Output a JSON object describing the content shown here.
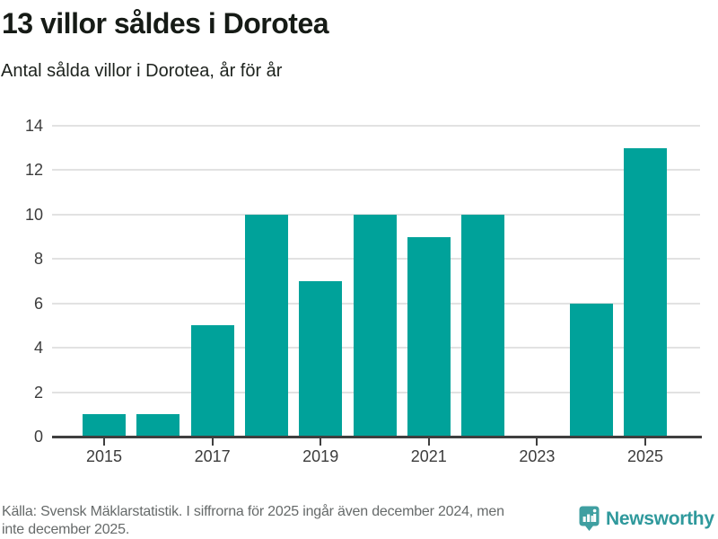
{
  "header": {
    "title": "13 villor såldes i Dorotea",
    "subtitle": "Antal sålda villor i Dorotea, år för år"
  },
  "chart_data": {
    "type": "bar",
    "categories": [
      "2015",
      "2016",
      "2017",
      "2018",
      "2019",
      "2020",
      "2021",
      "2022",
      "2023",
      "2024",
      "2025"
    ],
    "values": [
      1,
      1,
      5,
      10,
      7,
      10,
      9,
      10,
      0,
      6,
      13
    ],
    "title": "13 villor såldes i Dorotea",
    "subtitle": "Antal sålda villor i Dorotea, år för år",
    "xlabel": "",
    "ylabel": "",
    "ylim": [
      0,
      14
    ],
    "yticks": [
      0,
      2,
      4,
      6,
      8,
      10,
      12,
      14
    ],
    "xtick_years": [
      "2015",
      "2017",
      "2019",
      "2021",
      "2023",
      "2025"
    ],
    "grid": "horizontal",
    "legend": "none",
    "bar_color": "#00a29a",
    "gridline_color": "#e2e2e2",
    "axis_color": "#3f3f3f"
  },
  "footer": {
    "source_line1": "Källa: Svensk Mäklarstatistik. I siffrorna för 2025 ingår även december 2024, men",
    "source_line2": "inte december 2025.",
    "brand_name": "Newsworthy",
    "brand_color": "#2f999c",
    "brand_icon_color": "#3f9fa1"
  }
}
